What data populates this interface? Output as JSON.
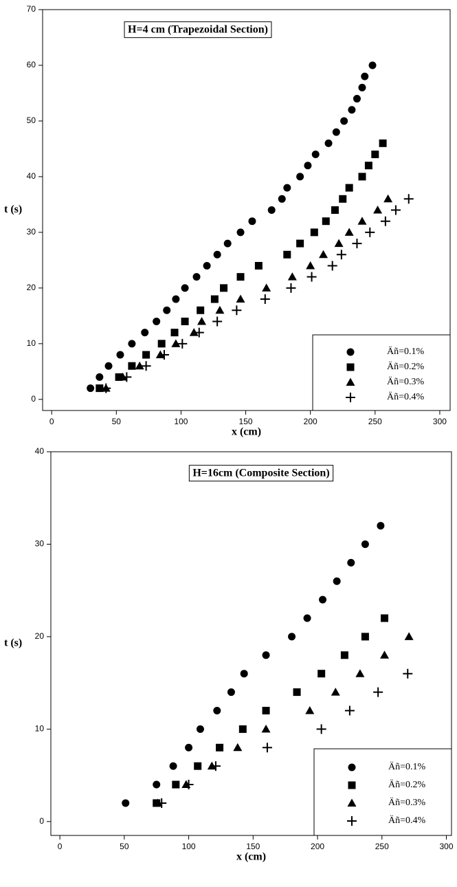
{
  "chart_data": [
    {
      "type": "scatter",
      "title": "H=4 cm (Trapezoidal Section)",
      "x_label": "x (cm)",
      "y_label": "t (s)",
      "xlim": [
        -7,
        308
      ],
      "xticks": [
        0,
        50,
        100,
        150,
        200,
        250,
        300
      ],
      "ylim": [
        -2,
        70
      ],
      "yticks": [
        0,
        10,
        20,
        30,
        40,
        50,
        60,
        70
      ],
      "legend": "lower right",
      "series": [
        {
          "name": "Äñ=0.1%",
          "color": "#000000",
          "marker": "circle",
          "x": [
            30,
            37,
            44,
            53,
            62,
            72,
            81,
            89,
            96,
            103,
            112,
            120,
            128,
            136,
            146,
            155,
            170,
            178,
            182,
            192,
            198,
            204,
            214,
            220,
            226,
            232,
            236,
            240,
            242,
            248
          ],
          "values": [
            2,
            4,
            6,
            8,
            10,
            12,
            14,
            16,
            18,
            20,
            22,
            24,
            26,
            28,
            30,
            32,
            34,
            36,
            38,
            40,
            42,
            44,
            46,
            48,
            50,
            52,
            54,
            56,
            58,
            60
          ]
        },
        {
          "name": "Äñ=0.2%",
          "color": "#000000",
          "marker": "square",
          "x": [
            37,
            52,
            62,
            73,
            85,
            95,
            103,
            115,
            126,
            133,
            146,
            160,
            182,
            192,
            203,
            212,
            219,
            225,
            230,
            240,
            245,
            250,
            256
          ],
          "values": [
            2,
            4,
            6,
            8,
            10,
            12,
            14,
            16,
            18,
            20,
            22,
            24,
            26,
            28,
            30,
            32,
            34,
            36,
            38,
            40,
            42,
            44,
            46
          ]
        },
        {
          "name": "Äñ=0.3%",
          "color": "#000000",
          "marker": "triangle",
          "x": [
            42,
            55,
            68,
            84,
            96,
            110,
            116,
            130,
            146,
            166,
            186,
            200,
            210,
            222,
            230,
            240,
            252,
            260
          ],
          "values": [
            2,
            4,
            6,
            8,
            10,
            12,
            14,
            16,
            18,
            20,
            22,
            24,
            26,
            28,
            30,
            32,
            34,
            36
          ]
        },
        {
          "name": "Äñ=0.4%",
          "color": "#000000",
          "marker": "plus",
          "x": [
            42,
            58,
            73,
            87,
            101,
            114,
            128,
            143,
            165,
            185,
            201,
            217,
            224,
            236,
            246,
            258,
            266,
            276
          ],
          "values": [
            2,
            4,
            6,
            8,
            10,
            12,
            14,
            16,
            18,
            20,
            22,
            24,
            26,
            28,
            30,
            32,
            34,
            36
          ]
        }
      ]
    },
    {
      "type": "scatter",
      "title": "H=16cm (Composite Section)",
      "x_label": "x (cm)",
      "y_label": "t (s)",
      "xlim": [
        -7,
        304
      ],
      "xticks": [
        0,
        50,
        100,
        150,
        200,
        250,
        300
      ],
      "ylim": [
        -1.5,
        40
      ],
      "yticks": [
        0,
        10,
        20,
        30,
        40
      ],
      "legend": "lower right",
      "series": [
        {
          "name": "Äñ=0.1%",
          "color": "#000000",
          "marker": "circle",
          "x": [
            51,
            75,
            88,
            100,
            109,
            122,
            133,
            143,
            160,
            180,
            192,
            204,
            215,
            226,
            237,
            249
          ],
          "values": [
            2,
            4,
            6,
            8,
            10,
            12,
            14,
            16,
            18,
            20,
            22,
            24,
            26,
            28,
            30,
            32
          ]
        },
        {
          "name": "Äñ=0.2%",
          "color": "#000000",
          "marker": "square",
          "x": [
            75,
            90,
            107,
            124,
            142,
            160,
            184,
            203,
            221,
            237,
            252
          ],
          "values": [
            2,
            4,
            6,
            8,
            10,
            12,
            14,
            16,
            18,
            20,
            22
          ]
        },
        {
          "name": "Äñ=0.3%",
          "color": "#000000",
          "marker": "triangle",
          "x": [
            76,
            98,
            118,
            138,
            160,
            194,
            214,
            233,
            252,
            271
          ],
          "values": [
            2,
            4,
            6,
            8,
            10,
            12,
            14,
            16,
            18,
            20
          ]
        },
        {
          "name": "Äñ=0.4%",
          "color": "#000000",
          "marker": "plus",
          "x": [
            79,
            100,
            121,
            161,
            203,
            225,
            247,
            270
          ],
          "values": [
            2,
            4,
            6,
            8,
            10,
            12,
            14,
            16
          ]
        }
      ]
    }
  ]
}
